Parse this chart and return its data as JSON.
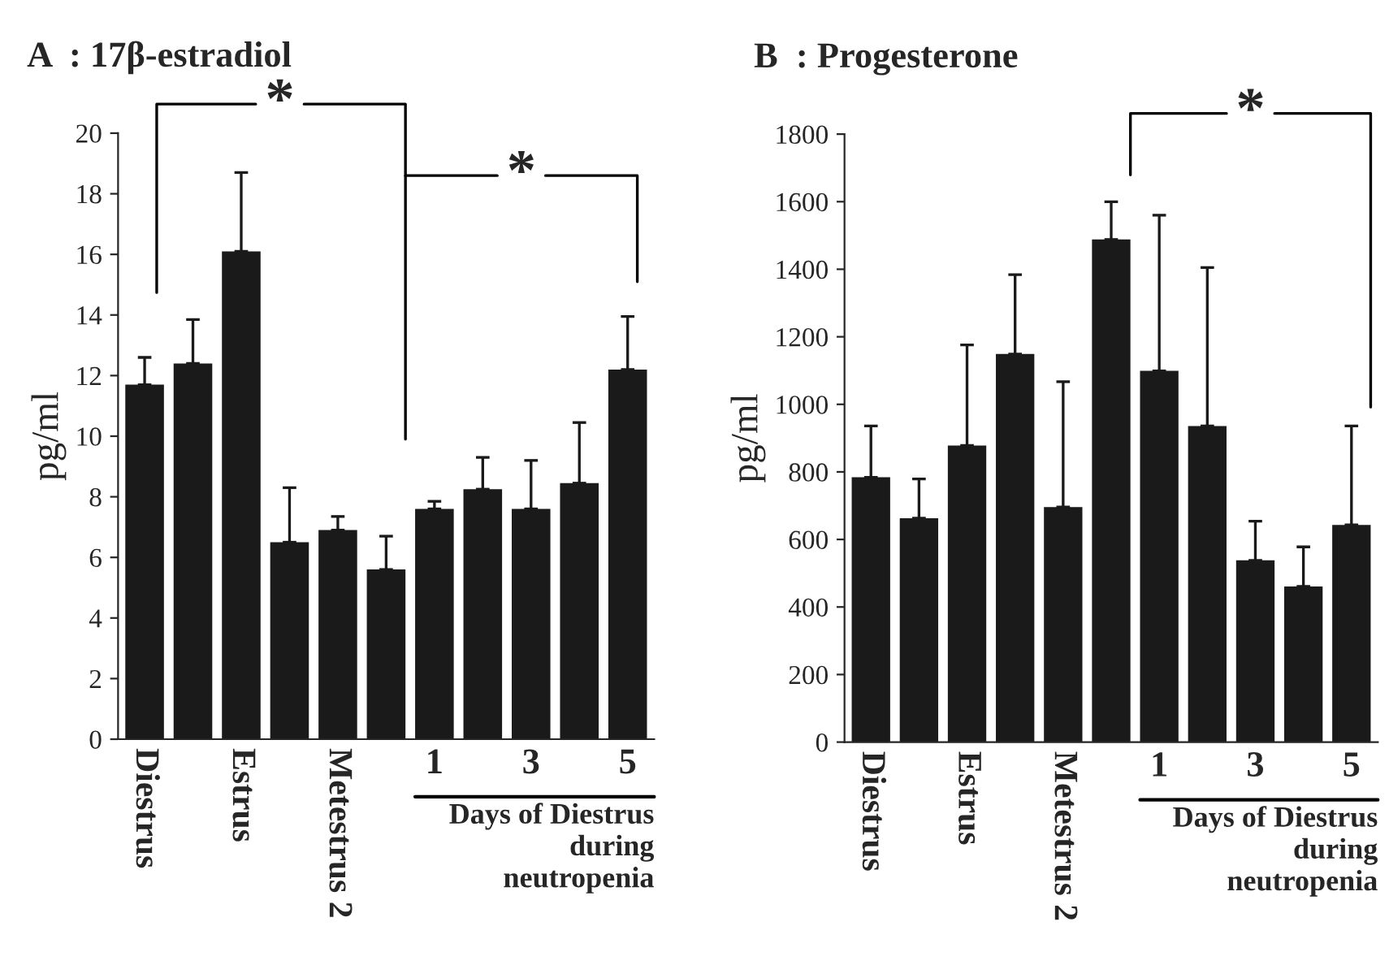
{
  "chart_data": [
    {
      "type": "bar",
      "title": "A  : 17β-estradiol",
      "ylabel": "pg/ml",
      "categories": [
        "Diestrus",
        null,
        "Estrus",
        null,
        "Metestrus 2",
        null,
        "1",
        null,
        "3",
        null,
        "5"
      ],
      "series": [
        {
          "color": "#1a1a1a",
          "values": [
            11.7,
            12.4,
            16.1,
            6.5,
            6.9,
            5.6,
            7.6,
            8.25,
            7.6,
            8.45,
            12.2
          ],
          "errors": [
            [
              11.7,
              12.6
            ],
            [
              12.4,
              13.85
            ],
            [
              16.1,
              18.7
            ],
            [
              6.5,
              8.3
            ],
            [
              6.9,
              7.35
            ],
            [
              5.6,
              6.7
            ],
            [
              7.6,
              7.85
            ],
            [
              8.25,
              9.3
            ],
            [
              7.6,
              9.2
            ],
            [
              8.45,
              10.45
            ],
            [
              12.2,
              13.95
            ]
          ]
        }
      ],
      "ylim": [
        0,
        20
      ],
      "yticks": [
        0,
        2,
        4,
        6,
        8,
        10,
        12,
        14,
        16,
        18,
        20
      ],
      "grid": false,
      "annotations": [
        "*",
        "*",
        "Days of Diestrus\nduring\nneutropenia"
      ]
    },
    {
      "type": "bar",
      "title": "B  : Progesterone",
      "ylabel": "pg/ml",
      "categories": [
        "Diestrus",
        null,
        "Estrus",
        null,
        "Metestrus 2",
        null,
        "1",
        null,
        "3",
        null,
        "5"
      ],
      "series": [
        {
          "color": "#1a1a1a",
          "values": [
            784,
            663,
            878,
            1149,
            696,
            1488,
            1099,
            936,
            538,
            461,
            643
          ],
          "errors": [
            [
              784,
              936
            ],
            [
              663,
              779
            ],
            [
              878,
              1176
            ],
            [
              1149,
              1384
            ],
            [
              696,
              1067
            ],
            [
              1488,
              1600
            ],
            [
              1099,
              1560
            ],
            [
              936,
              1405
            ],
            [
              538,
              654
            ],
            [
              461,
              578
            ],
            [
              643,
              936
            ]
          ]
        }
      ],
      "ylim": [
        0,
        1800
      ],
      "yticks": [
        0,
        200,
        400,
        600,
        800,
        1000,
        1200,
        1400,
        1600,
        1800
      ],
      "grid": false,
      "annotations": [
        "*",
        "Days of Diestrus\nduring\nneutropenia"
      ]
    }
  ]
}
